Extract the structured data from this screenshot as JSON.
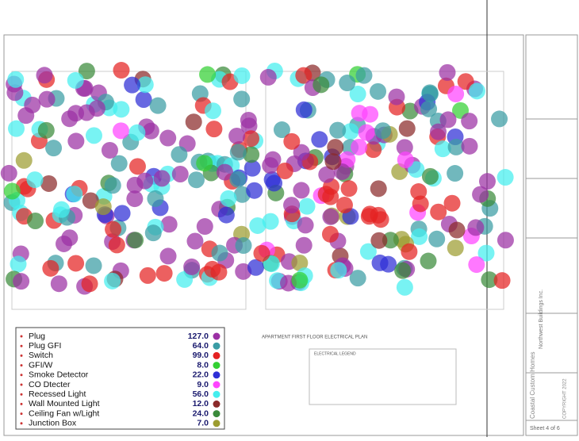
{
  "plan": {
    "title": "APARTMENT FIRST FLOOR ELECTRICAL PLAN",
    "legend_title": "ELECTRICAL LEGEND"
  },
  "title_block": {
    "company": "Northwest Buildings Inc.",
    "firm": "Coastal Custom Homes",
    "copyright": "COPYRIGHT 2022",
    "sheet": "Sheet 4 of 6"
  },
  "legend": [
    {
      "label": "Plug",
      "count": "127.0",
      "color": "#9b30a4"
    },
    {
      "label": "Plug GFI",
      "count": "64.0",
      "color": "#3a9ca4"
    },
    {
      "label": "Switch",
      "count": "99.0",
      "color": "#e42222"
    },
    {
      "label": "GFI/W",
      "count": "8.0",
      "color": "#33d033"
    },
    {
      "label": "Smoke Detector",
      "count": "22.0",
      "color": "#2e2ed6"
    },
    {
      "label": "CO Dtecter",
      "count": "9.0",
      "color": "#ff44ff"
    },
    {
      "label": "Recessed Light",
      "count": "56.0",
      "color": "#44eeee"
    },
    {
      "label": "Wall Mounted Light",
      "count": "12.0",
      "color": "#8b2a2a"
    },
    {
      "label": "Ceiling Fan w/Light",
      "count": "24.0",
      "color": "#3a8a3a"
    },
    {
      "label": "Junction Box",
      "count": "7.0",
      "color": "#9c9c30"
    }
  ]
}
